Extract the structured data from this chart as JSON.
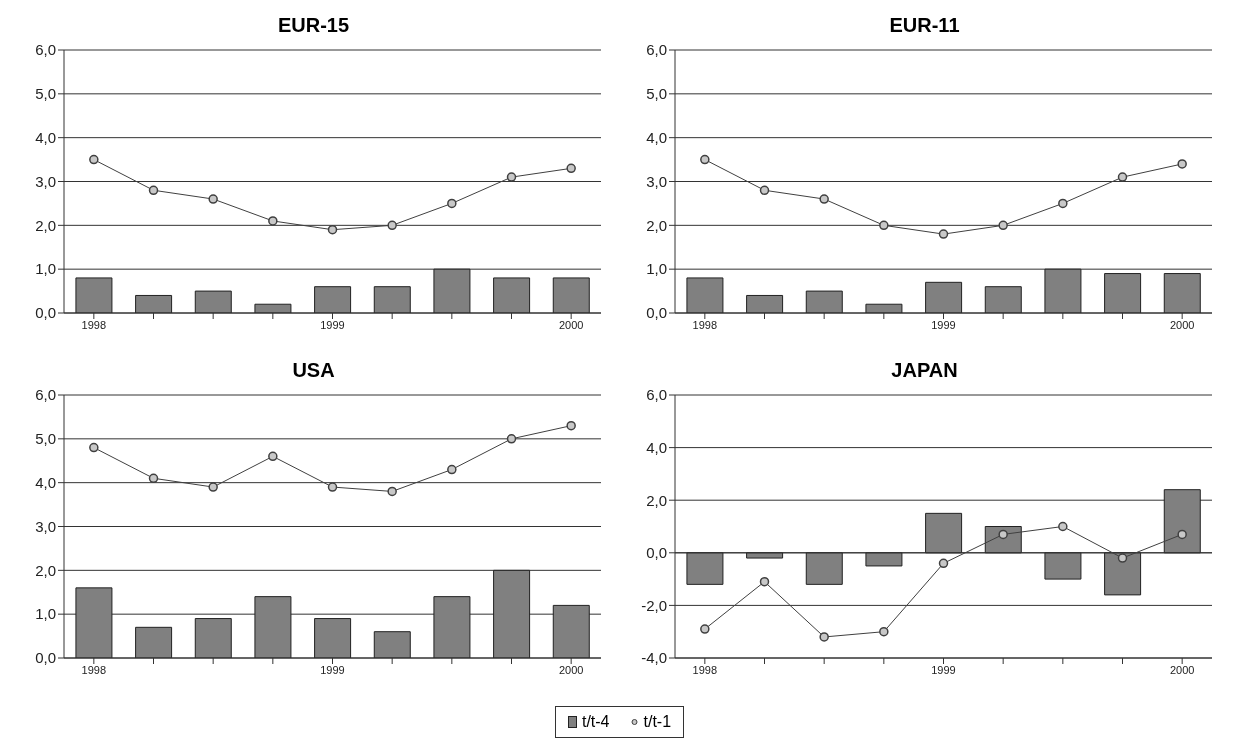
{
  "chart_data": [
    {
      "type": "bar",
      "title": "EUR-15",
      "categories": [
        "1998",
        null,
        null,
        null,
        "1999",
        null,
        null,
        null,
        "2000"
      ],
      "series": [
        {
          "name": "t/t-4",
          "color": "#808080",
          "values": [
            0.8,
            0.4,
            0.5,
            0.2,
            0.6,
            0.6,
            1.0,
            0.8,
            0.8
          ]
        },
        {
          "name": "t/t-1",
          "type": "line",
          "color": "#404040",
          "values": [
            3.5,
            2.8,
            2.6,
            2.1,
            1.9,
            2.0,
            2.5,
            3.1,
            3.3
          ]
        }
      ],
      "ylim": [
        0,
        6
      ],
      "yticks": [
        {
          "value": 0,
          "label": "0,0"
        },
        {
          "value": 1,
          "label": "1,0"
        },
        {
          "value": 2,
          "label": "2,0"
        },
        {
          "value": 3,
          "label": "3,0"
        },
        {
          "value": 4,
          "label": "4,0"
        },
        {
          "value": 5,
          "label": "5,0"
        },
        {
          "value": 6,
          "label": "6,0"
        }
      ],
      "grid": "y",
      "marker": "circle",
      "legend": "bottom"
    },
    {
      "type": "bar",
      "title": "EUR-11",
      "categories": [
        "1998",
        null,
        null,
        null,
        "1999",
        null,
        null,
        null,
        "2000"
      ],
      "series": [
        {
          "color": "#808080",
          "values": [
            0.8,
            0.4,
            0.5,
            0.2,
            0.7,
            0.6,
            1.0,
            0.9,
            0.9
          ]
        },
        {
          "type": "line",
          "color": "#404040",
          "values": [
            3.5,
            2.8,
            2.6,
            2.0,
            1.8,
            2.0,
            2.5,
            3.1,
            3.4
          ]
        }
      ],
      "ylim": [
        0,
        6
      ],
      "yticks": [
        {
          "value": 0,
          "label": "0,0"
        },
        {
          "value": 1,
          "label": "1,0"
        },
        {
          "value": 2,
          "label": "2,0"
        },
        {
          "value": 3,
          "label": "3,0"
        },
        {
          "value": 4,
          "label": "4,0"
        },
        {
          "value": 5,
          "label": "5,0"
        },
        {
          "value": 6,
          "label": "6,0"
        }
      ],
      "grid": "y",
      "marker": "circle"
    },
    {
      "type": "bar",
      "title": "USA",
      "categories": [
        "1998",
        null,
        null,
        null,
        "1999",
        null,
        null,
        null,
        "2000"
      ],
      "series": [
        {
          "color": "#808080",
          "values": [
            1.6,
            0.7,
            0.9,
            1.4,
            0.9,
            0.6,
            1.4,
            2.0,
            1.2
          ]
        },
        {
          "type": "line",
          "color": "#404040",
          "values": [
            4.8,
            4.1,
            3.9,
            4.6,
            3.9,
            3.8,
            4.3,
            5.0,
            5.3
          ]
        }
      ],
      "ylim": [
        0,
        6
      ],
      "yticks": [
        {
          "value": 0,
          "label": "0,0"
        },
        {
          "value": 1,
          "label": "1,0"
        },
        {
          "value": 2,
          "label": "2,0"
        },
        {
          "value": 3,
          "label": "3,0"
        },
        {
          "value": 4,
          "label": "4,0"
        },
        {
          "value": 5,
          "label": "5,0"
        },
        {
          "value": 6,
          "label": "6,0"
        }
      ],
      "grid": "y",
      "marker": "circle"
    },
    {
      "type": "bar",
      "title": "JAPAN",
      "categories": [
        "1998",
        null,
        null,
        null,
        "1999",
        null,
        null,
        null,
        "2000"
      ],
      "series": [
        {
          "color": "#808080",
          "values": [
            -1.2,
            -0.2,
            -1.2,
            -0.5,
            1.5,
            1.0,
            -1.0,
            -1.6,
            2.4
          ]
        },
        {
          "type": "line",
          "color": "#404040",
          "values": [
            -2.9,
            -1.1,
            -3.2,
            -3.0,
            -0.4,
            0.7,
            1.0,
            -0.2,
            0.7
          ]
        }
      ],
      "ylim": [
        -4,
        6
      ],
      "yticks": [
        {
          "value": -4,
          "label": "-4,0"
        },
        {
          "value": -2,
          "label": "-2,0"
        },
        {
          "value": 0,
          "label": "0,0"
        },
        {
          "value": 2,
          "label": "2,0"
        },
        {
          "value": 4,
          "label": "4,0"
        },
        {
          "value": 6,
          "label": "6,0"
        }
      ],
      "grid": "y",
      "marker": "circle"
    }
  ]
}
